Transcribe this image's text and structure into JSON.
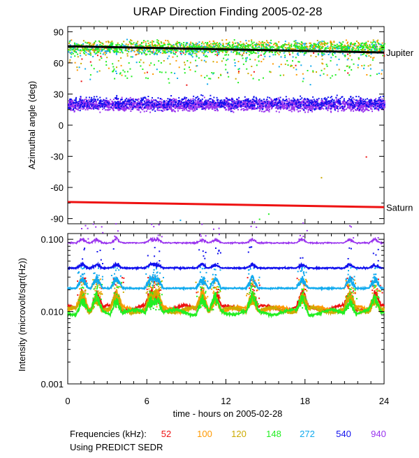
{
  "chart_data": [
    {
      "type": "scatter",
      "title": "URAP Direction Finding  2005-02-28",
      "ylabel": "Azimuthal angle (deg)",
      "xlim": [
        0,
        24
      ],
      "ylim": [
        -95,
        95
      ],
      "yticks": [
        90,
        60,
        30,
        0,
        -30,
        -60,
        -90
      ],
      "yticklabels": [
        "90",
        "60",
        "30",
        "0",
        "-30",
        "-60",
        "-90"
      ],
      "planets": [
        {
          "name": "Jupiter",
          "color": "#000000",
          "start_deg": 76,
          "end_deg": 70
        },
        {
          "name": "Saturn",
          "color": "#ee1111",
          "start_deg": -74,
          "end_deg": -79
        }
      ],
      "clusters": [
        {
          "freq_khz": 940,
          "center_deg": 20,
          "spread_deg": 8,
          "density": "dense"
        },
        {
          "freq_khz": 540,
          "center_deg": 22,
          "spread_deg": 9,
          "density": "medium"
        },
        {
          "freq_khz": 148,
          "center_deg": 75,
          "spread_deg": 9,
          "density": "medium"
        },
        {
          "freq_khz": 272,
          "center_deg": 74,
          "spread_deg": 10,
          "density": "sparse"
        },
        {
          "freq_khz": 120,
          "center_deg": 76,
          "spread_deg": 9,
          "density": "sparse"
        },
        {
          "freq_khz": 100,
          "center_deg": 76,
          "spread_deg": 8,
          "density": "sparse"
        },
        {
          "freq_khz": 52,
          "center_deg": 72,
          "spread_deg": 6,
          "density": "rare"
        }
      ]
    },
    {
      "type": "line",
      "ylabel": "Intensity (microvolt/sqrt(Hz))",
      "xlabel": "time - hours on 2005-02-28",
      "yscale": "log",
      "ylim": [
        0.001,
        0.12
      ],
      "yticks": [
        0.1,
        0.01,
        0.001
      ],
      "yticklabels": [
        "0.100",
        "0.010",
        "0.001"
      ],
      "xticks": [
        0,
        6,
        12,
        18,
        24
      ],
      "xticklabels": [
        "0",
        "6",
        "12",
        "18",
        "24"
      ],
      "series": [
        {
          "freq_khz": 940,
          "baseline": 0.089
        },
        {
          "freq_khz": 540,
          "baseline": 0.04
        },
        {
          "freq_khz": 272,
          "baseline": 0.021
        },
        {
          "freq_khz": 148,
          "baseline": 0.0098
        },
        {
          "freq_khz": 120,
          "baseline": 0.0105
        },
        {
          "freq_khz": 100,
          "baseline": 0.0108
        },
        {
          "freq_khz": 52,
          "baseline": 0.0112
        }
      ]
    }
  ],
  "frequencies": [
    {
      "freq_khz": 52,
      "label": "52",
      "color": "#ee1111"
    },
    {
      "freq_khz": 100,
      "label": "100",
      "color": "#ff9900"
    },
    {
      "freq_khz": 120,
      "label": "120",
      "color": "#ccaa00"
    },
    {
      "freq_khz": 148,
      "label": "148",
      "color": "#22ee22"
    },
    {
      "freq_khz": 272,
      "label": "272",
      "color": "#11aaee"
    },
    {
      "freq_khz": 540,
      "label": "540",
      "color": "#1111ee"
    },
    {
      "freq_khz": 940,
      "label": "940",
      "color": "#9933ee"
    }
  ],
  "legend": {
    "frequencies_label": "Frequencies (kHz):",
    "source_note": "Using PREDICT SEDR"
  }
}
